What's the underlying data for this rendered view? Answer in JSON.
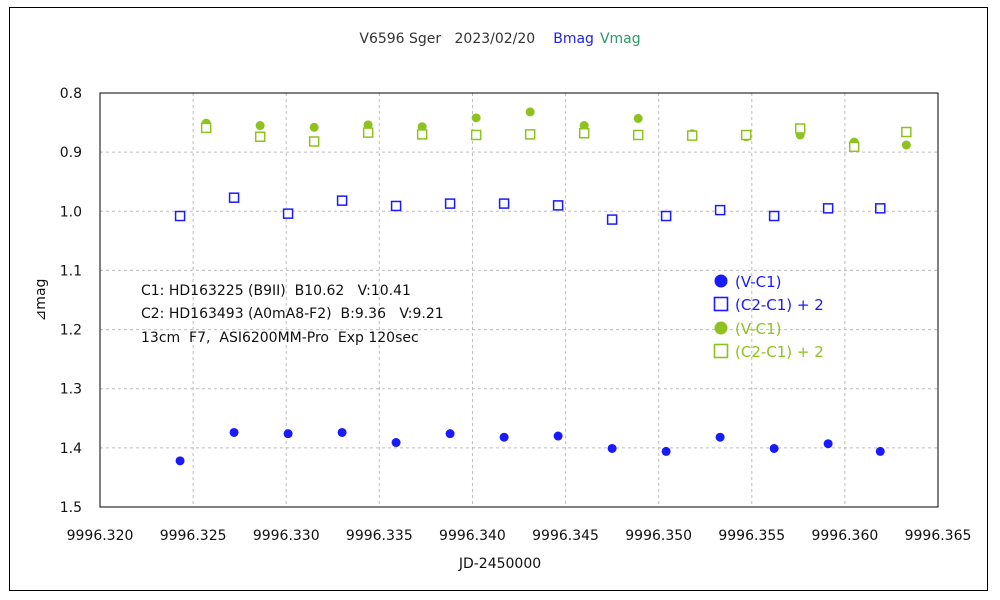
{
  "chart_data": {
    "type": "scatter",
    "title": {
      "prefix": "V6596 Sger   2023/02/20",
      "bmag": "Bmag",
      "vmag": "Vmag"
    },
    "xlabel": "JD-2450000",
    "ylabel": "⊿mag",
    "xlim": [
      9996.32,
      9996.365
    ],
    "ylim": [
      0.8,
      1.5
    ],
    "y_inverted": true,
    "grid": true,
    "legend_position": "right-middle",
    "x_ticks": [
      9996.32,
      9996.325,
      9996.33,
      9996.335,
      9996.34,
      9996.345,
      9996.35,
      9996.355,
      9996.36,
      9996.365
    ],
    "x_tick_labels": [
      "9996.320",
      "9996.325",
      "9996.330",
      "9996.335",
      "9996.340",
      "9996.345",
      "9996.350",
      "9996.355",
      "9996.360",
      "9996.365"
    ],
    "y_ticks": [
      0.8,
      0.9,
      1.0,
      1.1,
      1.2,
      1.3,
      1.4,
      1.5
    ],
    "y_tick_labels": [
      "0.8",
      "0.9",
      "1.0",
      "1.1",
      "1.2",
      "1.3",
      "1.4",
      "1.5"
    ],
    "annotations": [
      "C1: HD163225 (B9II)  B10.62   V:10.41",
      "C2: HD163493 (A0mA8-F2)  B:9.36   V:9.21",
      "13cm  F7,  ASI6200MM-Pro  Exp 120sec"
    ],
    "series": [
      {
        "name": "(V-C1)",
        "color": "#1a1aff",
        "marker": "filled-circle",
        "x": [
          9996.3243,
          9996.3272,
          9996.3301,
          9996.333,
          9996.3359,
          9996.3388,
          9996.3417,
          9996.3446,
          9996.3475,
          9996.3504,
          9996.3533,
          9996.3562,
          9996.3591,
          9996.3619
        ],
        "y": [
          1.422,
          1.374,
          1.376,
          1.374,
          1.391,
          1.376,
          1.382,
          1.38,
          1.401,
          1.406,
          1.382,
          1.401,
          1.393,
          1.406
        ]
      },
      {
        "name": "(C2-C1) + 2",
        "color": "#1a1aff",
        "marker": "open-square",
        "x": [
          9996.3243,
          9996.3272,
          9996.3301,
          9996.333,
          9996.3359,
          9996.3388,
          9996.3417,
          9996.3446,
          9996.3475,
          9996.3504,
          9996.3533,
          9996.3562,
          9996.3591,
          9996.3619
        ],
        "y": [
          1.008,
          0.977,
          1.004,
          0.982,
          0.991,
          0.987,
          0.987,
          0.99,
          1.014,
          1.008,
          0.998,
          1.008,
          0.995,
          0.995
        ]
      },
      {
        "name": "(V-C1)",
        "color": "#8ec21f",
        "marker": "filled-circle",
        "x": [
          9996.3257,
          9996.3286,
          9996.3315,
          9996.3344,
          9996.3373,
          9996.3402,
          9996.3431,
          9996.346,
          9996.3489,
          9996.3518,
          9996.3547,
          9996.3576,
          9996.3605,
          9996.3633
        ],
        "y": [
          0.851,
          0.855,
          0.858,
          0.854,
          0.857,
          0.842,
          0.832,
          0.855,
          0.843,
          0.869,
          0.874,
          0.871,
          0.883,
          0.888
        ]
      },
      {
        "name": "(C2-C1) + 2",
        "color": "#8ec21f",
        "marker": "open-square",
        "x": [
          9996.3257,
          9996.3286,
          9996.3315,
          9996.3344,
          9996.3373,
          9996.3402,
          9996.3431,
          9996.346,
          9996.3489,
          9996.3518,
          9996.3547,
          9996.3576,
          9996.3605,
          9996.3633
        ],
        "y": [
          0.859,
          0.874,
          0.882,
          0.867,
          0.87,
          0.871,
          0.87,
          0.868,
          0.871,
          0.872,
          0.871,
          0.86,
          0.891,
          0.866
        ]
      }
    ]
  }
}
